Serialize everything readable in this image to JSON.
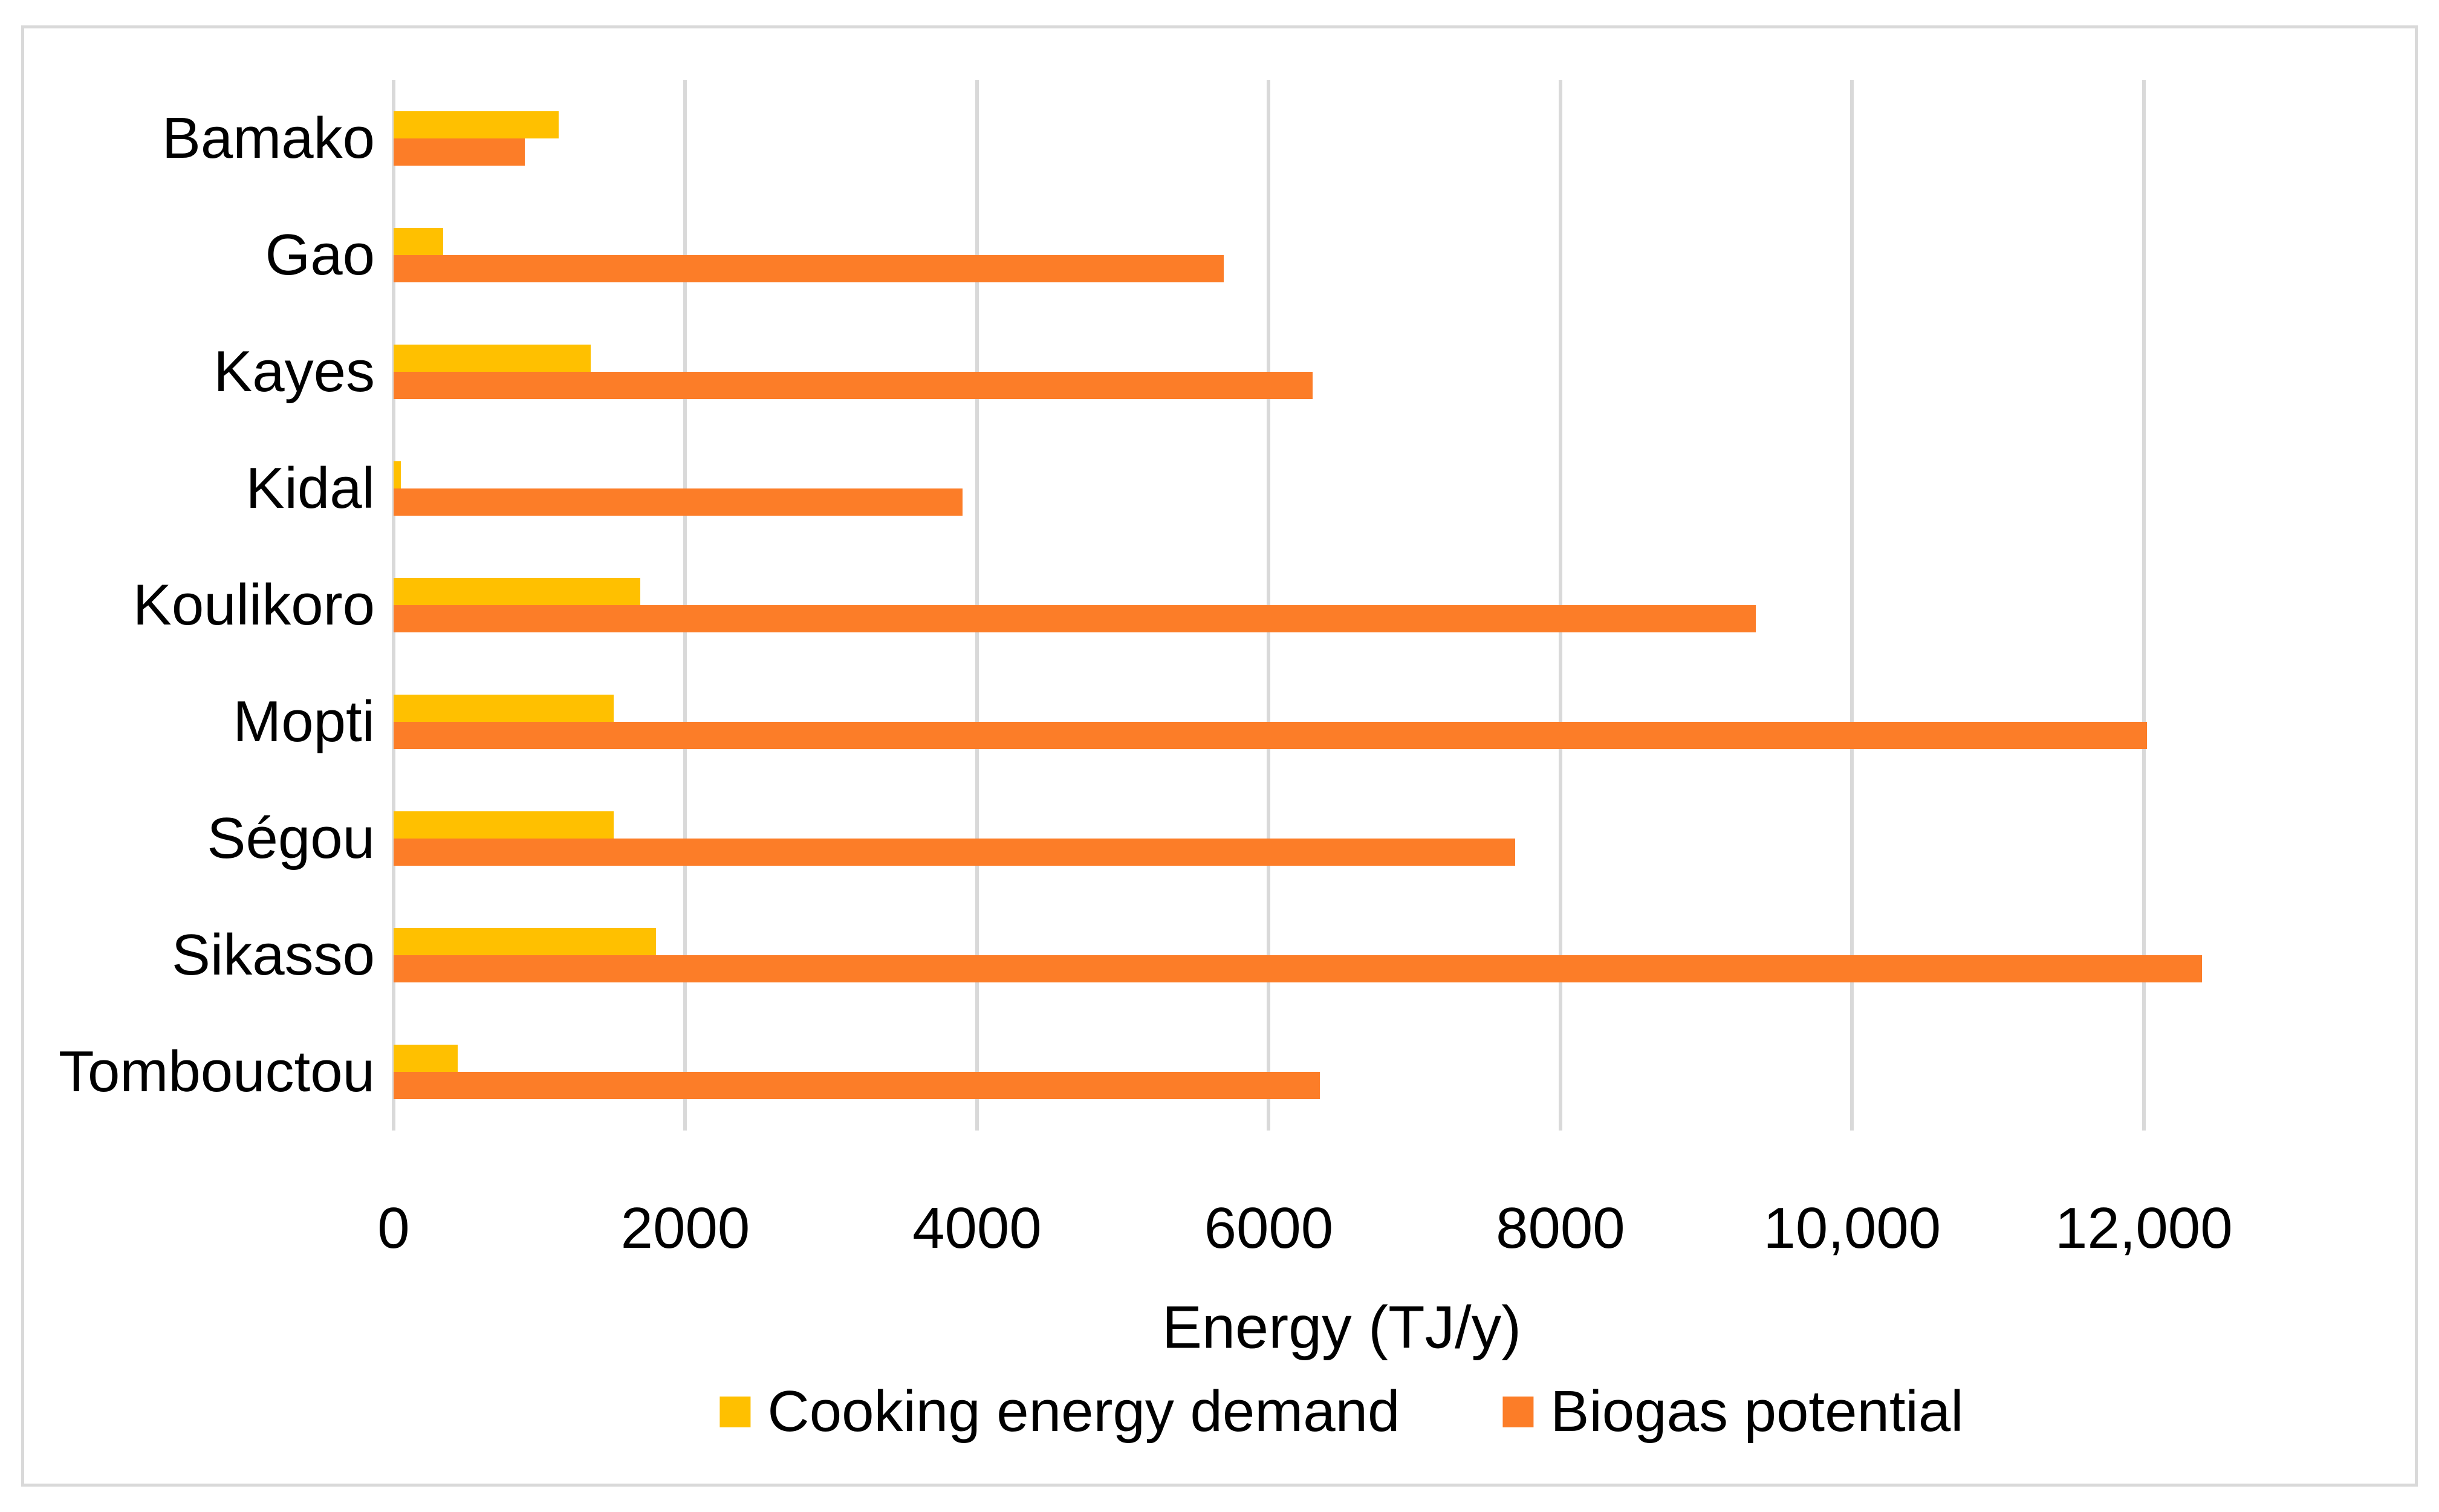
{
  "figure": {
    "background_color": "#ffffff",
    "border_color": "#d9d9d9"
  },
  "chart_data": {
    "type": "bar",
    "orientation": "horizontal",
    "title": "",
    "xlabel": "Energy (TJ/y)",
    "ylabel": "",
    "xlim": [
      0,
      13000
    ],
    "grid": "vertical",
    "gridline_color": "#d9d9d9",
    "legend_position": "bottom",
    "categories": [
      "Bamako",
      "Gao",
      "Kayes",
      "Kidal",
      "Koulikoro",
      "Mopti",
      "Ségou",
      "Sikasso",
      "Tombouctou"
    ],
    "series": [
      {
        "name": "Cooking energy demand",
        "color": "#ffc000",
        "values": [
          1130,
          340,
          1350,
          50,
          1690,
          1510,
          1510,
          1800,
          440
        ]
      },
      {
        "name": "Biogas potential",
        "color": "#fc7d28",
        "values": [
          900,
          5690,
          6300,
          3900,
          9340,
          12020,
          7690,
          12400,
          6350
        ]
      }
    ],
    "xticks": {
      "values": [
        0,
        2000,
        4000,
        6000,
        8000,
        10000,
        12000
      ],
      "labels": [
        "0",
        "2000",
        "4000",
        "6000",
        "8000",
        "10,000",
        "12,000"
      ]
    }
  }
}
